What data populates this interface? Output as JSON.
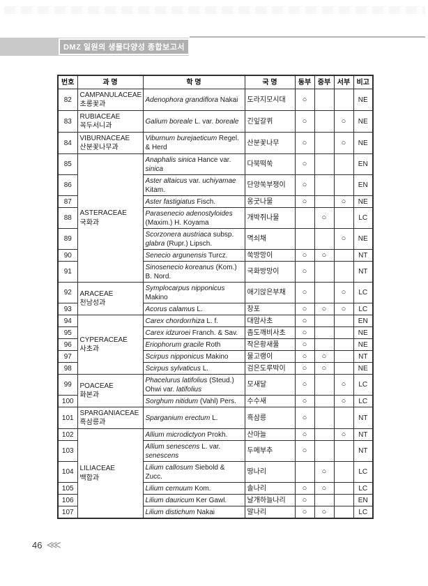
{
  "page": {
    "header": {
      "title": "DMZ 일원의 생물다양성 종합보고서"
    },
    "footer": {
      "page_number": "46",
      "chevrons": "⋘"
    }
  },
  "colors": {
    "band_gray": "#c9c9c9",
    "title_box_gray": "#b0b0b0",
    "border": "#2e2e2e"
  },
  "table": {
    "circle_glyph": "○",
    "columns": [
      {
        "key": "no",
        "label": "번호"
      },
      {
        "key": "family",
        "label": "과 명"
      },
      {
        "key": "sci",
        "label": "학 명"
      },
      {
        "key": "kor",
        "label": "국 명"
      },
      {
        "key": "east",
        "label": "동부"
      },
      {
        "key": "mid",
        "label": "중부"
      },
      {
        "key": "west",
        "label": "서부"
      },
      {
        "key": "note",
        "label": "비고"
      }
    ],
    "rows": [
      {
        "no": "82",
        "family": {
          "latin": "CAMPANULACEAE",
          "kor": "초롱꽃과",
          "span": 1
        },
        "sci": [
          [
            "Adenophora grandiflora",
            1
          ],
          [
            " Nakai",
            0
          ]
        ],
        "kor": "도라지모시대",
        "east": 1,
        "mid": 0,
        "west": 0,
        "note": "NE"
      },
      {
        "no": "83",
        "family": {
          "latin": "RUBIACEAE",
          "kor": "꼭두서니과",
          "span": 1
        },
        "sci": [
          [
            "Galium boreale",
            1
          ],
          [
            " L. var. ",
            0
          ],
          [
            "boreale",
            1
          ]
        ],
        "kor": "긴잎갈퀴",
        "east": 1,
        "mid": 0,
        "west": 1,
        "note": "NE"
      },
      {
        "no": "84",
        "family": {
          "latin": "VIBURNACEAE",
          "kor": "산분꽃나무과",
          "span": 1
        },
        "sci": [
          [
            "Viburnum burejaeticum",
            1
          ],
          [
            " Regel. & Herd",
            0
          ]
        ],
        "kor": "산분꽃나무",
        "east": 1,
        "mid": 0,
        "west": 1,
        "note": "NE"
      },
      {
        "no": "85",
        "family": {
          "latin": "ASTERACEAE",
          "kor": "국화과",
          "span": 7
        },
        "sci": [
          [
            "Anaphalis sinica",
            1
          ],
          [
            " Hance var. ",
            0
          ],
          [
            "sinica",
            1
          ]
        ],
        "kor": "다북떡쑥",
        "east": 1,
        "mid": 0,
        "west": 0,
        "note": "EN"
      },
      {
        "no": "86",
        "family": null,
        "sci": [
          [
            "Aster altaicus",
            1
          ],
          [
            " var. ",
            0
          ],
          [
            "uchiyamae",
            1
          ],
          [
            " Kitam.",
            0
          ]
        ],
        "kor": "단양쑥부쟁이",
        "east": 1,
        "mid": 0,
        "west": 0,
        "note": "EN"
      },
      {
        "no": "87",
        "family": null,
        "sci": [
          [
            "Aster fastigiatus",
            1
          ],
          [
            " Fisch.",
            0
          ]
        ],
        "kor": "옹굿나물",
        "east": 1,
        "mid": 0,
        "west": 1,
        "note": "NE"
      },
      {
        "no": "88",
        "family": null,
        "sci": [
          [
            "Parasenecio adenostyloides",
            1
          ],
          [
            " (Maxim.) H. Koyama",
            0
          ]
        ],
        "kor": "개박쥐나물",
        "east": 0,
        "mid": 1,
        "west": 0,
        "note": "LC"
      },
      {
        "no": "89",
        "family": null,
        "sci": [
          [
            "Scorzonera austriaca",
            1
          ],
          [
            " subsp. ",
            0
          ],
          [
            "glabra",
            1
          ],
          [
            " (Rupr.) Lipsch.",
            0
          ]
        ],
        "kor": "멱쇠채",
        "east": 0,
        "mid": 0,
        "west": 1,
        "note": "NE"
      },
      {
        "no": "90",
        "family": null,
        "sci": [
          [
            "Senecio argunensis",
            1
          ],
          [
            " Turcz.",
            0
          ]
        ],
        "kor": "쑥방망이",
        "east": 1,
        "mid": 1,
        "west": 0,
        "note": "NT"
      },
      {
        "no": "91",
        "family": null,
        "sci": [
          [
            "Sinosenecio koreanus",
            1
          ],
          [
            " (Kom.) B. Nord.",
            0
          ]
        ],
        "kor": "국화방망이",
        "east": 1,
        "mid": 0,
        "west": 0,
        "note": "NT"
      },
      {
        "no": "92",
        "family": {
          "latin": "ARACEAE",
          "kor": "천남성과",
          "span": 2
        },
        "sci": [
          [
            "Symplocarpus nipponicus",
            1
          ],
          [
            " Makino",
            0
          ]
        ],
        "kor": "애기앉은부채",
        "east": 1,
        "mid": 0,
        "west": 1,
        "note": "LC"
      },
      {
        "no": "93",
        "family": null,
        "sci": [
          [
            "Acorus calamus",
            1
          ],
          [
            " L.",
            0
          ]
        ],
        "kor": "창포",
        "east": 1,
        "mid": 1,
        "west": 1,
        "note": "LC"
      },
      {
        "no": "94",
        "family": {
          "latin": "CYPERACEAE",
          "kor": "사초과",
          "span": 5
        },
        "sci": [
          [
            "Carex chordorrhiza",
            1
          ],
          [
            " L. f.",
            0
          ]
        ],
        "kor": "대암사초",
        "east": 1,
        "mid": 0,
        "west": 0,
        "note": "EN"
      },
      {
        "no": "95",
        "family": null,
        "sci": [
          [
            "Carex idzuroei",
            1
          ],
          [
            " Franch. & Sav.",
            0
          ]
        ],
        "kor": "좀도깨비사초",
        "east": 1,
        "mid": 0,
        "west": 0,
        "note": "NE"
      },
      {
        "no": "96",
        "family": null,
        "sci": [
          [
            "Eriophorum gracile",
            1
          ],
          [
            " Roth",
            0
          ]
        ],
        "kor": "작은황새풀",
        "east": 1,
        "mid": 0,
        "west": 0,
        "note": "NE"
      },
      {
        "no": "97",
        "family": null,
        "sci": [
          [
            "Scirpus nipponicus",
            1
          ],
          [
            " Makino",
            0
          ]
        ],
        "kor": "물고랭이",
        "east": 1,
        "mid": 1,
        "west": 0,
        "note": "NT"
      },
      {
        "no": "98",
        "family": null,
        "sci": [
          [
            "Scirpus sylvaticus",
            1
          ],
          [
            " L.",
            0
          ]
        ],
        "kor": "검은도루박이",
        "east": 1,
        "mid": 1,
        "west": 0,
        "note": "NE"
      },
      {
        "no": "99",
        "family": {
          "latin": "POACEAE",
          "kor": "화본과",
          "span": 2
        },
        "sci": [
          [
            "Phacelurus latifolius",
            1
          ],
          [
            " (Steud.) Ohwi var. ",
            0
          ],
          [
            "latifolius",
            1
          ]
        ],
        "kor": "모새달",
        "east": 1,
        "mid": 0,
        "west": 1,
        "note": "LC"
      },
      {
        "no": "100",
        "family": null,
        "sci": [
          [
            "Sorghum nitidum",
            1
          ],
          [
            " (Vahl) Pers.",
            0
          ]
        ],
        "kor": "수수새",
        "east": 1,
        "mid": 0,
        "west": 1,
        "note": "LC"
      },
      {
        "no": "101",
        "family": {
          "latin": "SPARGANIACEAE",
          "kor": "흑삼릉과",
          "span": 1
        },
        "sci": [
          [
            "Sparganium erectum",
            1
          ],
          [
            " L.",
            0
          ]
        ],
        "kor": "흑삼릉",
        "east": 1,
        "mid": 0,
        "west": 0,
        "note": "NT"
      },
      {
        "no": "102",
        "family": {
          "latin": "LILIACEAE",
          "kor": "백합과",
          "span": 6
        },
        "sci": [
          [
            "Allium microdictyon",
            1
          ],
          [
            " Prokh.",
            0
          ]
        ],
        "kor": "산마늘",
        "east": 1,
        "mid": 0,
        "west": 1,
        "note": "NT"
      },
      {
        "no": "103",
        "family": null,
        "sci": [
          [
            "Allium senescens",
            1
          ],
          [
            " L. var. ",
            0
          ],
          [
            "senescens",
            1
          ]
        ],
        "kor": "두메부추",
        "east": 1,
        "mid": 0,
        "west": 0,
        "note": "NT"
      },
      {
        "no": "104",
        "family": null,
        "sci": [
          [
            "Lilium callosum",
            1
          ],
          [
            " Siebold & Zucc.",
            0
          ]
        ],
        "kor": "땅나리",
        "east": 0,
        "mid": 1,
        "west": 0,
        "note": "LC"
      },
      {
        "no": "105",
        "family": null,
        "sci": [
          [
            "Lilium cernuum",
            1
          ],
          [
            " Kom.",
            0
          ]
        ],
        "kor": "솔나리",
        "east": 1,
        "mid": 1,
        "west": 0,
        "note": "LC"
      },
      {
        "no": "106",
        "family": null,
        "sci": [
          [
            "Lilium dauricum",
            1
          ],
          [
            " Ker Gawl.",
            0
          ]
        ],
        "kor": "날개하늘나리",
        "east": 1,
        "mid": 0,
        "west": 0,
        "note": "EN"
      },
      {
        "no": "107",
        "family": null,
        "sci": [
          [
            "Lilium distichum",
            1
          ],
          [
            " Nakai",
            0
          ]
        ],
        "kor": "말나리",
        "east": 1,
        "mid": 1,
        "west": 0,
        "note": "LC"
      }
    ]
  }
}
